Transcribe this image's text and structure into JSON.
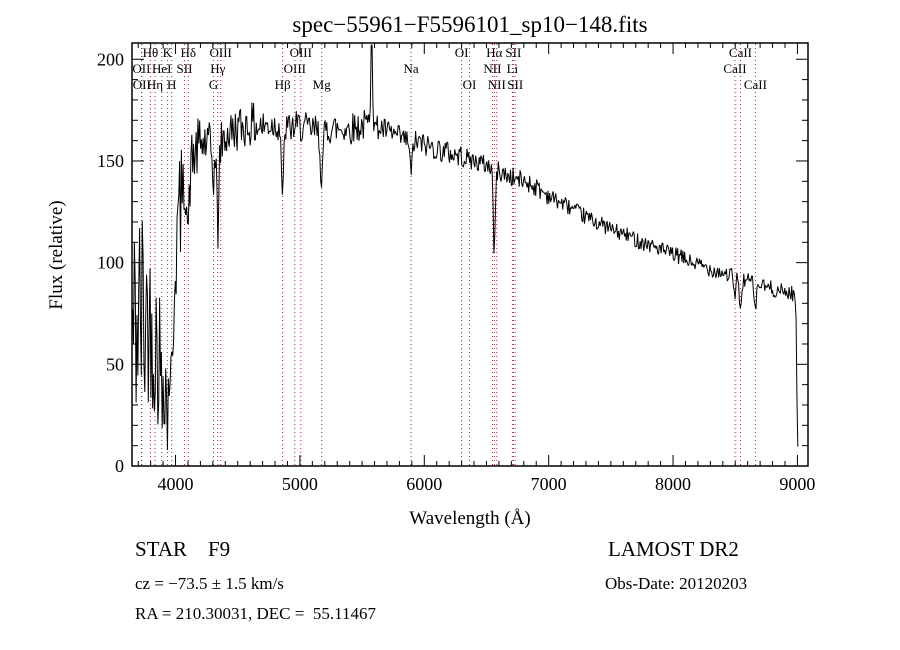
{
  "chart_data": {
    "type": "line",
    "title": "spec−55961−F5596101_sp10−148.fits",
    "xlabel": "Wavelength (Å)",
    "ylabel": "Flux (relative)",
    "xlim": [
      3650,
      9085
    ],
    "ylim": [
      0,
      208
    ],
    "xticks": [
      4000,
      5000,
      6000,
      7000,
      8000,
      9000
    ],
    "yticks": [
      0,
      50,
      100,
      150,
      200
    ],
    "x_minor_step": 100,
    "y_minor_step": 10,
    "grid": false,
    "legend": "none",
    "line_color": "#000000",
    "marker_line_color": "#a52a2a",
    "spectral_lines": [
      {
        "wavelength": 3726,
        "label": "OII",
        "row": 2
      },
      {
        "wavelength": 3729,
        "label": "OII",
        "row": 3
      },
      {
        "wavelength": 3798,
        "label": "Hθ",
        "row": 1
      },
      {
        "wavelength": 3835,
        "label": "Hη",
        "row": 3
      },
      {
        "wavelength": 3889,
        "label": "HeI",
        "row": 2
      },
      {
        "wavelength": 3934,
        "label": "K",
        "row": 1
      },
      {
        "wavelength": 3969,
        "label": "H",
        "row": 3
      },
      {
        "wavelength": 4072,
        "label": "SII",
        "row": 2
      },
      {
        "wavelength": 4102,
        "label": "Hδ",
        "row": 1
      },
      {
        "wavelength": 4305,
        "label": "G",
        "row": 3
      },
      {
        "wavelength": 4340,
        "label": "Hγ",
        "row": 2
      },
      {
        "wavelength": 4363,
        "label": "OIII",
        "row": 1
      },
      {
        "wavelength": 4861,
        "label": "Hβ",
        "row": 3
      },
      {
        "wavelength": 4959,
        "label": "OIII",
        "row": 2
      },
      {
        "wavelength": 5007,
        "label": "OIII",
        "row": 1
      },
      {
        "wavelength": 5175,
        "label": "Mg",
        "row": 3
      },
      {
        "wavelength": 5894,
        "label": "Na",
        "row": 2
      },
      {
        "wavelength": 6300,
        "label": "OI",
        "row": 1
      },
      {
        "wavelength": 6363,
        "label": "OI",
        "row": 3
      },
      {
        "wavelength": 6548,
        "label": "NII",
        "row": 2
      },
      {
        "wavelength": 6563,
        "label": "Hα",
        "row": 1
      },
      {
        "wavelength": 6583,
        "label": "NII",
        "row": 3
      },
      {
        "wavelength": 6708,
        "label": "Li",
        "row": 2
      },
      {
        "wavelength": 6716,
        "label": "SII",
        "row": 1
      },
      {
        "wavelength": 6731,
        "label": "SII",
        "row": 3
      },
      {
        "wavelength": 8498,
        "label": "CaII",
        "row": 2
      },
      {
        "wavelength": 8542,
        "label": "CaII",
        "row": 1
      },
      {
        "wavelength": 8662,
        "label": "CaII",
        "row": 3
      }
    ],
    "continuum_points": [
      [
        3655,
        65
      ],
      [
        3680,
        70
      ],
      [
        3700,
        72
      ],
      [
        3730,
        75
      ],
      [
        3760,
        72
      ],
      [
        3800,
        70
      ],
      [
        3830,
        62
      ],
      [
        3860,
        58
      ],
      [
        3900,
        60
      ],
      [
        3940,
        68
      ],
      [
        3970,
        78
      ],
      [
        4000,
        105
      ],
      [
        4030,
        125
      ],
      [
        4060,
        135
      ],
      [
        4100,
        145
      ],
      [
        4150,
        153
      ],
      [
        4200,
        158
      ],
      [
        4250,
        159
      ],
      [
        4300,
        157
      ],
      [
        4360,
        158
      ],
      [
        4420,
        163
      ],
      [
        4500,
        166
      ],
      [
        4600,
        168
      ],
      [
        4700,
        167
      ],
      [
        4800,
        168
      ],
      [
        4900,
        166
      ],
      [
        5000,
        167
      ],
      [
        5100,
        165
      ],
      [
        5250,
        166
      ],
      [
        5400,
        166
      ],
      [
        5550,
        168
      ],
      [
        5650,
        166
      ],
      [
        5750,
        163
      ],
      [
        5850,
        160
      ],
      [
        5950,
        159
      ],
      [
        6050,
        157
      ],
      [
        6150,
        155
      ],
      [
        6250,
        153
      ],
      [
        6350,
        151
      ],
      [
        6450,
        149
      ],
      [
        6550,
        147
      ],
      [
        6650,
        143
      ],
      [
        6750,
        141
      ],
      [
        6850,
        139
      ],
      [
        6950,
        135
      ],
      [
        7050,
        131
      ],
      [
        7150,
        128
      ],
      [
        7250,
        124
      ],
      [
        7350,
        121
      ],
      [
        7450,
        118
      ],
      [
        7550,
        115
      ],
      [
        7650,
        113
      ],
      [
        7750,
        110
      ],
      [
        7850,
        108
      ],
      [
        7950,
        105
      ],
      [
        8050,
        103
      ],
      [
        8150,
        100
      ],
      [
        8250,
        98
      ],
      [
        8350,
        96
      ],
      [
        8450,
        94
      ],
      [
        8550,
        92
      ],
      [
        8650,
        90
      ],
      [
        8750,
        88
      ],
      [
        8850,
        86
      ],
      [
        8950,
        85
      ],
      [
        8985,
        84
      ],
      [
        8993,
        60
      ],
      [
        8997,
        22
      ],
      [
        9003,
        12
      ],
      [
        9008,
        6
      ]
    ],
    "absorption_features": [
      {
        "wavelength": 3889,
        "depth": 30,
        "sigma": 8
      },
      {
        "wavelength": 3934,
        "depth": 45,
        "sigma": 10
      },
      {
        "wavelength": 3969,
        "depth": 42,
        "sigma": 10
      },
      {
        "wavelength": 4102,
        "depth": 30,
        "sigma": 9
      },
      {
        "wavelength": 4305,
        "depth": 15,
        "sigma": 10
      },
      {
        "wavelength": 4340,
        "depth": 42,
        "sigma": 8
      },
      {
        "wavelength": 4861,
        "depth": 38,
        "sigma": 8
      },
      {
        "wavelength": 5175,
        "depth": 22,
        "sigma": 12
      },
      {
        "wavelength": 5894,
        "depth": 18,
        "sigma": 8
      },
      {
        "wavelength": 6563,
        "depth": 42,
        "sigma": 8
      },
      {
        "wavelength": 8498,
        "depth": 12,
        "sigma": 7
      },
      {
        "wavelength": 8542,
        "depth": 18,
        "sigma": 7
      },
      {
        "wavelength": 8662,
        "depth": 15,
        "sigma": 7
      }
    ],
    "emission_spikes": [
      {
        "wavelength": 5577,
        "height": 75,
        "sigma": 6
      }
    ],
    "noise_regions": [
      [
        3650,
        3780,
        60
      ],
      [
        3780,
        3920,
        40
      ],
      [
        3920,
        4060,
        28
      ],
      [
        4060,
        4250,
        15
      ],
      [
        4250,
        4700,
        11
      ],
      [
        4700,
        5600,
        8
      ],
      [
        5600,
        6300,
        6
      ],
      [
        6300,
        7000,
        5
      ],
      [
        7000,
        8200,
        4
      ],
      [
        8200,
        9010,
        4
      ]
    ],
    "noise_seed": 42,
    "sample_step": 7,
    "sample_range": [
      3655,
      9008
    ]
  },
  "annotations": {
    "object_class": "STAR    F9",
    "survey": "LAMOST DR2",
    "cz": "cz = −73.5 ± 1.5 km/s",
    "radec": "RA = 210.30031, DEC =  55.11467",
    "obs_date": "Obs-Date: 20120203"
  }
}
